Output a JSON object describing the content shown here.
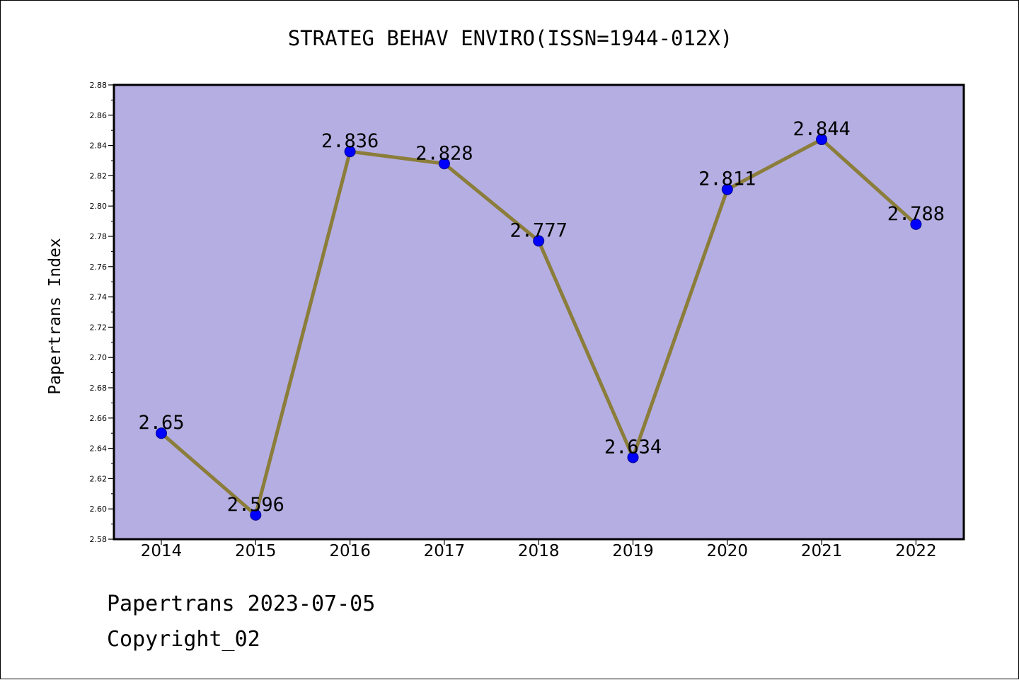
{
  "chart_data": {
    "type": "line",
    "title": "STRATEG BEHAV ENVIRO(ISSN=1944-012X)",
    "xlabel": "",
    "ylabel": "Papertrans Index",
    "categories": [
      "2014",
      "2015",
      "2016",
      "2017",
      "2018",
      "2019",
      "2020",
      "2021",
      "2022"
    ],
    "series": [
      {
        "values": [
          2.65,
          2.596,
          2.836,
          2.828,
          2.777,
          2.634,
          2.811,
          2.844,
          2.788
        ],
        "data_labels": [
          "2.65",
          "2.596",
          "2.836",
          "2.828",
          "2.777",
          "2.634",
          "2.811",
          "2.844",
          "2.788"
        ]
      }
    ],
    "ylim": [
      2.58,
      2.88
    ],
    "yticks": [
      "2.58",
      "2.60",
      "2.62",
      "2.64",
      "2.66",
      "2.68",
      "2.70",
      "2.72",
      "2.74",
      "2.76",
      "2.78",
      "2.80",
      "2.82",
      "2.84",
      "2.86",
      "2.88"
    ],
    "grid": false,
    "legend": "none"
  },
  "footer": {
    "date_text": "Papertrans 2023-07-05",
    "copyright_text": "Copyright_02"
  },
  "colors": {
    "plot_background": "#b4aee2",
    "line": "#8b7d3a",
    "marker": "#0000ff",
    "marker_edge": "#00008b"
  }
}
